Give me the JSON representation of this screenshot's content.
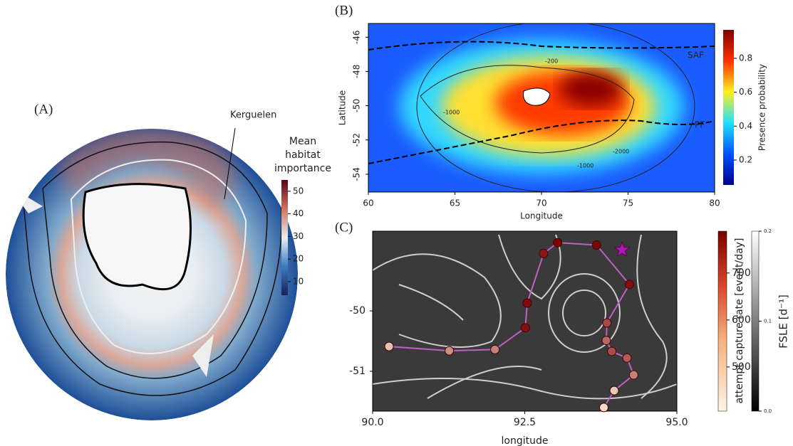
{
  "chart_data": [
    {
      "type": "polar-map",
      "label": "(A)",
      "annotation": "Kerguelen",
      "colorbar": {
        "title": [
          "Mean",
          "habitat",
          "importance"
        ],
        "lim": [
          4,
          55
        ],
        "ticks": [
          10,
          20,
          30,
          40,
          50
        ]
      }
    },
    {
      "type": "heatmap",
      "label": "(B)",
      "xlabel": "Longitude",
      "ylabel": "Latitude",
      "xlim": [
        60,
        80
      ],
      "xticks": [
        60,
        65,
        70,
        75,
        80
      ],
      "ylim": [
        -55.04,
        -45.2
      ],
      "yticks": [
        -54,
        -52,
        -50,
        -48,
        -46
      ],
      "annotations": [
        "SAF",
        "PF",
        "-200",
        "-1000",
        "-2000",
        "-1000"
      ],
      "colorbar": {
        "title": "Presence probability",
        "lim": [
          0.053,
          0.968
        ],
        "ticks": [
          0.2,
          0.4,
          0.6,
          0.8
        ]
      }
    },
    {
      "type": "track",
      "label": "(C)",
      "xlabel": "longitude",
      "xlim": [
        90,
        95
      ],
      "xticks": [
        {
          "value": 90,
          "label": "90.0"
        },
        {
          "value": 92.5,
          "label": "92.5"
        },
        {
          "value": 95,
          "label": "95.0"
        }
      ],
      "ylim": [
        -51.66,
        -48.68
      ],
      "yticks": [
        -51,
        -50
      ],
      "track": {
        "x": [
          90.27,
          91.26,
          92.01,
          92.51,
          92.54,
          92.81,
          93.04,
          93.68,
          94.22,
          93.85,
          93.84,
          93.93,
          94.18,
          94.29,
          93.97,
          93.8
        ],
        "y": [
          -50.59,
          -50.66,
          -50.64,
          -50.28,
          -49.87,
          -49.05,
          -48.87,
          -48.91,
          -49.56,
          -50.2,
          -50.49,
          -50.67,
          -50.78,
          -51.06,
          -51.32,
          -51.6
        ],
        "values": [
          480,
          560,
          580,
          760,
          770,
          750,
          780,
          780,
          760,
          670,
          620,
          660,
          640,
          580,
          470,
          440
        ]
      },
      "start": {
        "x": 94.1,
        "y": -48.99
      },
      "colorbar": {
        "title": "attempt capture rate [event/day]",
        "lim": [
          406,
          789
        ],
        "ticks": [
          500,
          600,
          700
        ]
      },
      "colorbar2": {
        "title": "FSLE [d⁻¹]",
        "lim": [
          0,
          0.2
        ],
        "ticks": [
          {
            "value": 0,
            "label": "0.0"
          },
          {
            "value": 0.1,
            "label": "0.1"
          },
          {
            "value": 0.2,
            "label": "0.2"
          }
        ]
      }
    }
  ]
}
